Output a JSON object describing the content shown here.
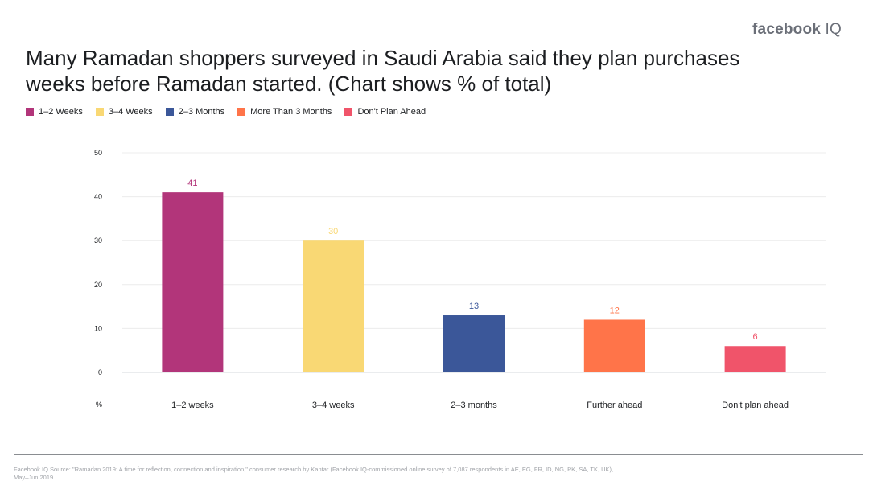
{
  "brand": {
    "name": "facebook",
    "suffix": "IQ"
  },
  "title_line1": "Many Ramadan shoppers surveyed in Saudi Arabia said they plan purchases",
  "title_line2": "weeks before Ramadan started. (Chart shows % of total)",
  "legend": [
    {
      "label": "1–2 Weeks",
      "color": "#b2357a"
    },
    {
      "label": "3–4 Weeks",
      "color": "#f9d874"
    },
    {
      "label": "2–3 Months",
      "color": "#3b5799"
    },
    {
      "label": "More Than 3 Months",
      "color": "#ff7449"
    },
    {
      "label": "Don't Plan Ahead",
      "color": "#f0546a"
    }
  ],
  "chart_data": {
    "type": "bar",
    "title": "Many Ramadan shoppers surveyed in Saudi Arabia said they plan purchases weeks before Ramadan started. (Chart shows % of total)",
    "categories": [
      "1–2 weeks",
      "3–4 weeks",
      "2–3 months",
      "Further ahead",
      "Don't plan ahead"
    ],
    "values": [
      41,
      30,
      13,
      12,
      6
    ],
    "colors": [
      "#b2357a",
      "#f9d874",
      "#3b5799",
      "#ff7449",
      "#f0546a"
    ],
    "ylim": [
      0,
      50
    ],
    "yticks": [
      0,
      10,
      20,
      30,
      40,
      50
    ],
    "ylabel": "%",
    "xlabel": "",
    "grid": true
  },
  "footnote_line1": "Facebook IQ Source: \"Ramadan 2019: A time for reflection, connection and inspiration,\" consumer research by Kantar (Facebook IQ-commissioned online survey of 7,087 respondents in AE, EG, FR, ID, NG, PK, SA, TK, UK),",
  "footnote_line2": "May–Jun 2019."
}
